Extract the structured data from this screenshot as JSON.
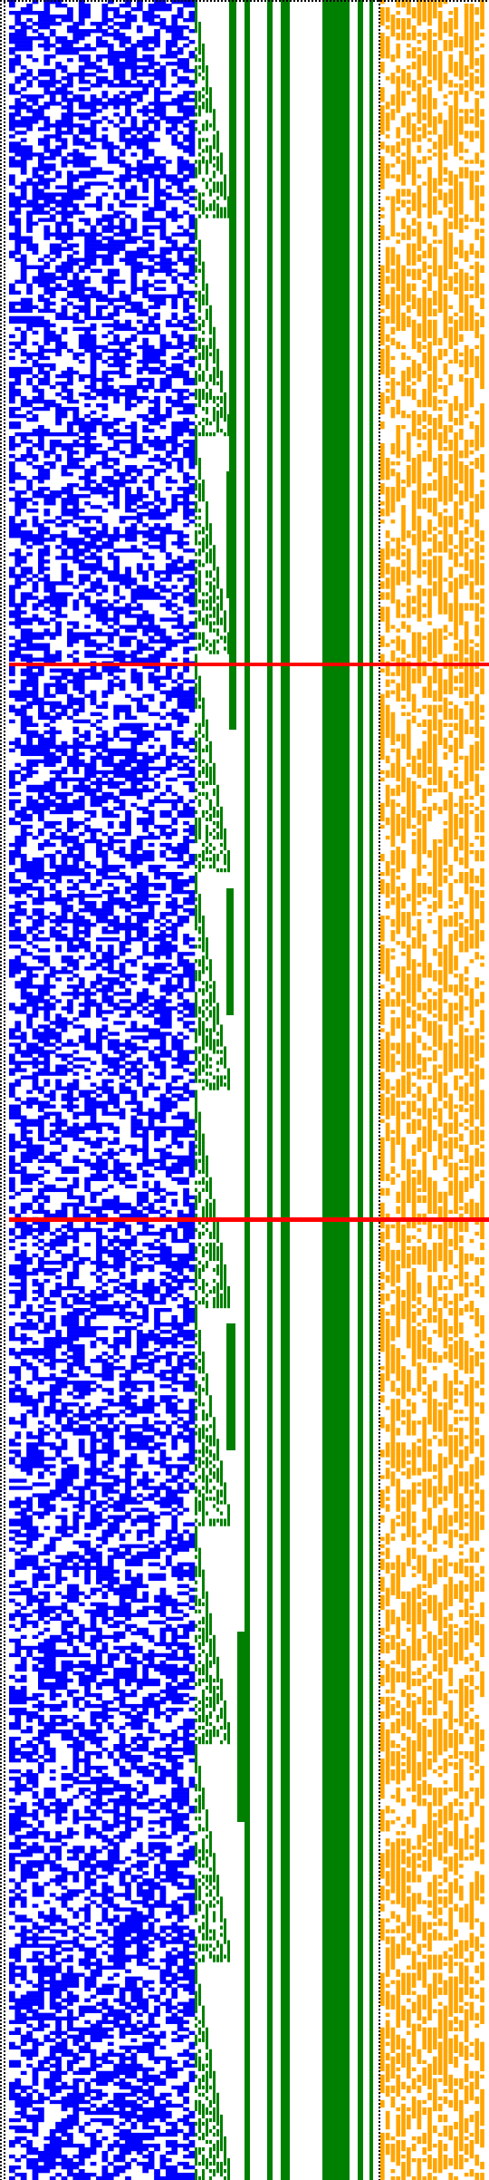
{
  "palette": {
    "background": "#ffffff",
    "dotted_border": "#000000",
    "blue_cells": "#0000ff",
    "green_staircase": "#008000",
    "green_bars": "#008000",
    "orange_cells": "#ffa500",
    "red_markers": "#ff0000"
  },
  "grid": {
    "rows": 600,
    "left_cols": 32,
    "right_cols": 20,
    "blue_density": 0.47,
    "orange_density": 0.5,
    "seed": 7
  },
  "staircase": {
    "steps_per_block": 10,
    "rows_per_step": 6
  },
  "green_bars": {
    "count": 5
  },
  "red_markers": {
    "count": 2
  }
}
